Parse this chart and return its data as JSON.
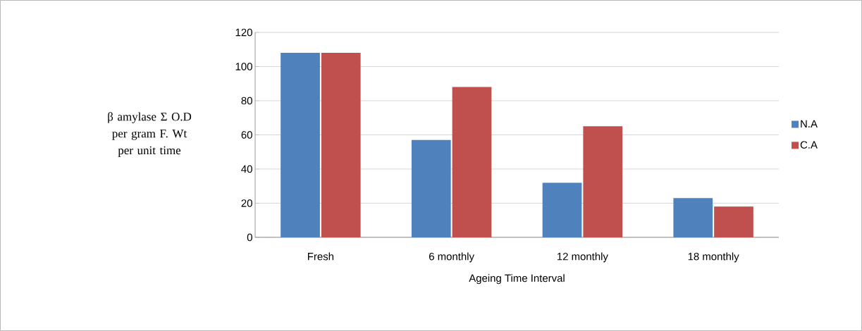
{
  "chart_data": {
    "type": "bar",
    "xlabel": "Ageing Time Interval",
    "ylabel": "β amylase Σ O.D per gram F. Wt per unit time",
    "categories": [
      "Fresh",
      "6 monthly",
      "12 monthly",
      "18 monthly"
    ],
    "series": [
      {
        "name": "N.A",
        "color": "#4f81bd",
        "values": [
          108,
          57,
          32,
          23
        ]
      },
      {
        "name": "C.A",
        "color": "#c0504d",
        "values": [
          108,
          88,
          65,
          18
        ]
      }
    ],
    "ylim": [
      0,
      120
    ],
    "yticks": [
      0,
      20,
      40,
      60,
      80,
      100,
      120
    ],
    "grid": "y",
    "legend": "right"
  }
}
